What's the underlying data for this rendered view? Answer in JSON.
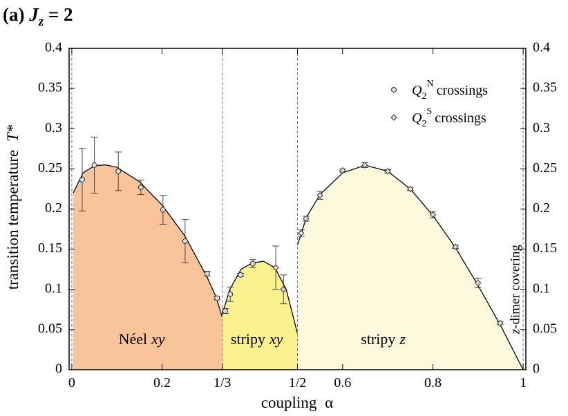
{
  "chart_data": {
    "type": "scatter",
    "title_parts": [
      "(a)",
      "J",
      "z",
      "= 2"
    ],
    "x_label_parts": [
      "coupling",
      "α"
    ],
    "y_label_parts": [
      "transition temperature",
      "T*"
    ],
    "xlim": [
      -0.006,
      1.006
    ],
    "ylim": [
      0,
      0.4
    ],
    "xticks": [
      0,
      0.2,
      {
        "value": 0.3333,
        "label": "1/3"
      },
      {
        "value": 0.5,
        "label": "1/2"
      },
      0.6,
      0.8,
      1
    ],
    "yticks": [
      0,
      0.05,
      0.1,
      0.15,
      0.2,
      0.25,
      0.3,
      0.35,
      0.4
    ],
    "legend": "upper right",
    "series": [
      {
        "name": "crossings",
        "symbol": "Q",
        "sub": "2",
        "sup": "N",
        "marker": "circle",
        "color": "#444444",
        "x": [
          0.023,
          0.05,
          0.103,
          0.153,
          0.202,
          0.251,
          0.3,
          0.322,
          0.34,
          0.351,
          0.374,
          0.401
        ],
        "values": [
          0.2366,
          0.2546,
          0.247,
          0.227,
          0.199,
          0.16,
          0.1196,
          0.089,
          0.073,
          0.094,
          0.118,
          0.132
        ],
        "errors": [
          0.039,
          0.035,
          0.024,
          0.009,
          0.018,
          0.027,
          0.003,
          0.002,
          0.003,
          0.009,
          0.002,
          0.005
        ]
      },
      {
        "name": "crossings",
        "symbol": "Q",
        "sub": "2",
        "sup": "S",
        "marker": "diamond",
        "color": "#444444",
        "x": [
          0.452,
          0.469,
          0.508,
          0.519,
          0.55,
          0.6,
          0.649,
          0.7,
          0.75,
          0.8,
          0.85,
          0.9,
          0.949
        ],
        "values": [
          0.127,
          0.1,
          0.17,
          0.188,
          0.217,
          0.248,
          0.2546,
          0.247,
          0.225,
          0.193,
          0.153,
          0.108,
          0.058
        ],
        "errors": [
          0.027,
          0.018,
          0.004,
          0.003,
          0.005,
          0.002,
          0.003,
          0.002,
          0.002,
          0.004,
          0.002,
          0.006,
          0.002
        ]
      }
    ],
    "phase_boundaries": [
      {
        "color": "#f9c49a",
        "x": [
          0.003,
          0.025,
          0.05,
          0.075,
          0.1,
          0.15,
          0.2,
          0.25,
          0.3,
          0.32,
          0.333
        ],
        "values": [
          0.22,
          0.245,
          0.254,
          0.255,
          0.252,
          0.234,
          0.205,
          0.167,
          0.115,
          0.09,
          0.066
        ]
      },
      {
        "color": "#fbf28f",
        "x": [
          0.333,
          0.35,
          0.375,
          0.4,
          0.425,
          0.45,
          0.475,
          0.5
        ],
        "values": [
          0.068,
          0.1,
          0.125,
          0.133,
          0.135,
          0.127,
          0.1,
          0.045
        ]
      },
      {
        "color": "#fdf9dc",
        "x": [
          0.5,
          0.52,
          0.55,
          0.6,
          0.65,
          0.7,
          0.75,
          0.8,
          0.85,
          0.9,
          0.95,
          1.0
        ],
        "values": [
          0.155,
          0.19,
          0.218,
          0.245,
          0.2546,
          0.247,
          0.225,
          0.192,
          0.152,
          0.105,
          0.055,
          0
        ]
      }
    ],
    "dividers": [
      0,
      0.3333,
      0.5,
      1
    ],
    "region_labels": [
      {
        "plain": "Néel",
        "italic": "xy"
      },
      {
        "plain": "stripy",
        "italic": "xy"
      },
      {
        "plain": "stripy",
        "italic": "z"
      },
      {
        "italic": "z",
        "plain": "-dimer covering"
      }
    ]
  }
}
